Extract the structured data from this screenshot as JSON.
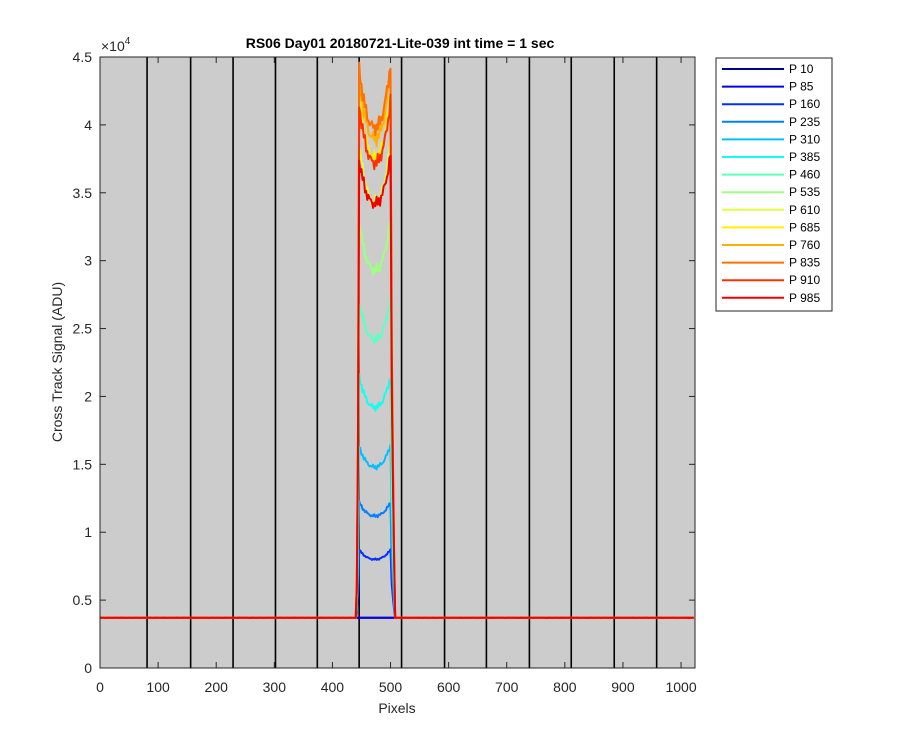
{
  "chart_data": {
    "type": "line",
    "title": "RS06 Day01 20180721-Lite-039 int time = 1 sec",
    "xlabel": "Pixels",
    "ylabel": "Cross Track Signal (ADU)",
    "y_exponent_label": "×10",
    "y_exponent_power": "4",
    "xlim": [
      0,
      1024
    ],
    "ylim": [
      0,
      4.5
    ],
    "y_multiplier": 10000,
    "x_ticks": [
      0,
      100,
      200,
      300,
      400,
      500,
      600,
      700,
      800,
      900,
      1000
    ],
    "x_tick_labels": [
      "0",
      "100",
      "200",
      "300",
      "400",
      "500",
      "600",
      "700",
      "800",
      "900",
      "1000"
    ],
    "y_ticks": [
      0,
      0.5,
      1,
      1.5,
      2,
      2.5,
      3,
      3.5,
      4,
      4.5
    ],
    "y_tick_labels": [
      "0",
      "0.5",
      "1",
      "1.5",
      "2",
      "2.5",
      "3",
      "3.5",
      "4",
      "4.5"
    ],
    "background_color": "#cccccc",
    "vertical_lines_x": [
      81,
      156,
      229,
      302,
      374,
      446,
      519,
      593,
      665,
      739,
      811,
      885,
      958
    ],
    "legend_position": "outside-top-right",
    "baseline": 3700,
    "plateau_start": 446,
    "plateau_end": 500,
    "series": [
      {
        "name": "P 10",
        "color": "#00008f",
        "peak_left": 3700,
        "dip": 3700,
        "peak_right": 3700
      },
      {
        "name": "P 85",
        "color": "#0000e0",
        "peak_left": 3700,
        "dip": 3700,
        "peak_right": 3700
      },
      {
        "name": "P 160",
        "color": "#0030ff",
        "peak_left": 8700,
        "dip": 8000,
        "peak_right": 8700
      },
      {
        "name": "P 235",
        "color": "#0080ff",
        "peak_left": 12200,
        "dip": 11200,
        "peak_right": 12200
      },
      {
        "name": "P 310",
        "color": "#00c0ff",
        "peak_left": 16300,
        "dip": 14800,
        "peak_right": 16400
      },
      {
        "name": "P 385",
        "color": "#10ffef",
        "peak_left": 21500,
        "dip": 19200,
        "peak_right": 21500
      },
      {
        "name": "P 460",
        "color": "#60ffc0",
        "peak_left": 27000,
        "dip": 24200,
        "peak_right": 27200
      },
      {
        "name": "P 535",
        "color": "#9fff80",
        "peak_left": 32800,
        "dip": 29300,
        "peak_right": 33000
      },
      {
        "name": "P 610",
        "color": "#dfff40",
        "peak_left": 38500,
        "dip": 34300,
        "peak_right": 38700
      },
      {
        "name": "P 685",
        "color": "#ffef00",
        "peak_left": 42000,
        "dip": 37600,
        "peak_right": 42300
      },
      {
        "name": "P 760",
        "color": "#ffb000",
        "peak_left": 43500,
        "dip": 39000,
        "peak_right": 44000
      },
      {
        "name": "P 835",
        "color": "#ff7000",
        "peak_left": 44200,
        "dip": 39800,
        "peak_right": 44600
      },
      {
        "name": "P 910",
        "color": "#ff3000",
        "peak_left": 41500,
        "dip": 37200,
        "peak_right": 41800
      },
      {
        "name": "P 985",
        "color": "#f00000",
        "peak_left": 37400,
        "dip": 34200,
        "peak_right": 37800
      }
    ]
  }
}
